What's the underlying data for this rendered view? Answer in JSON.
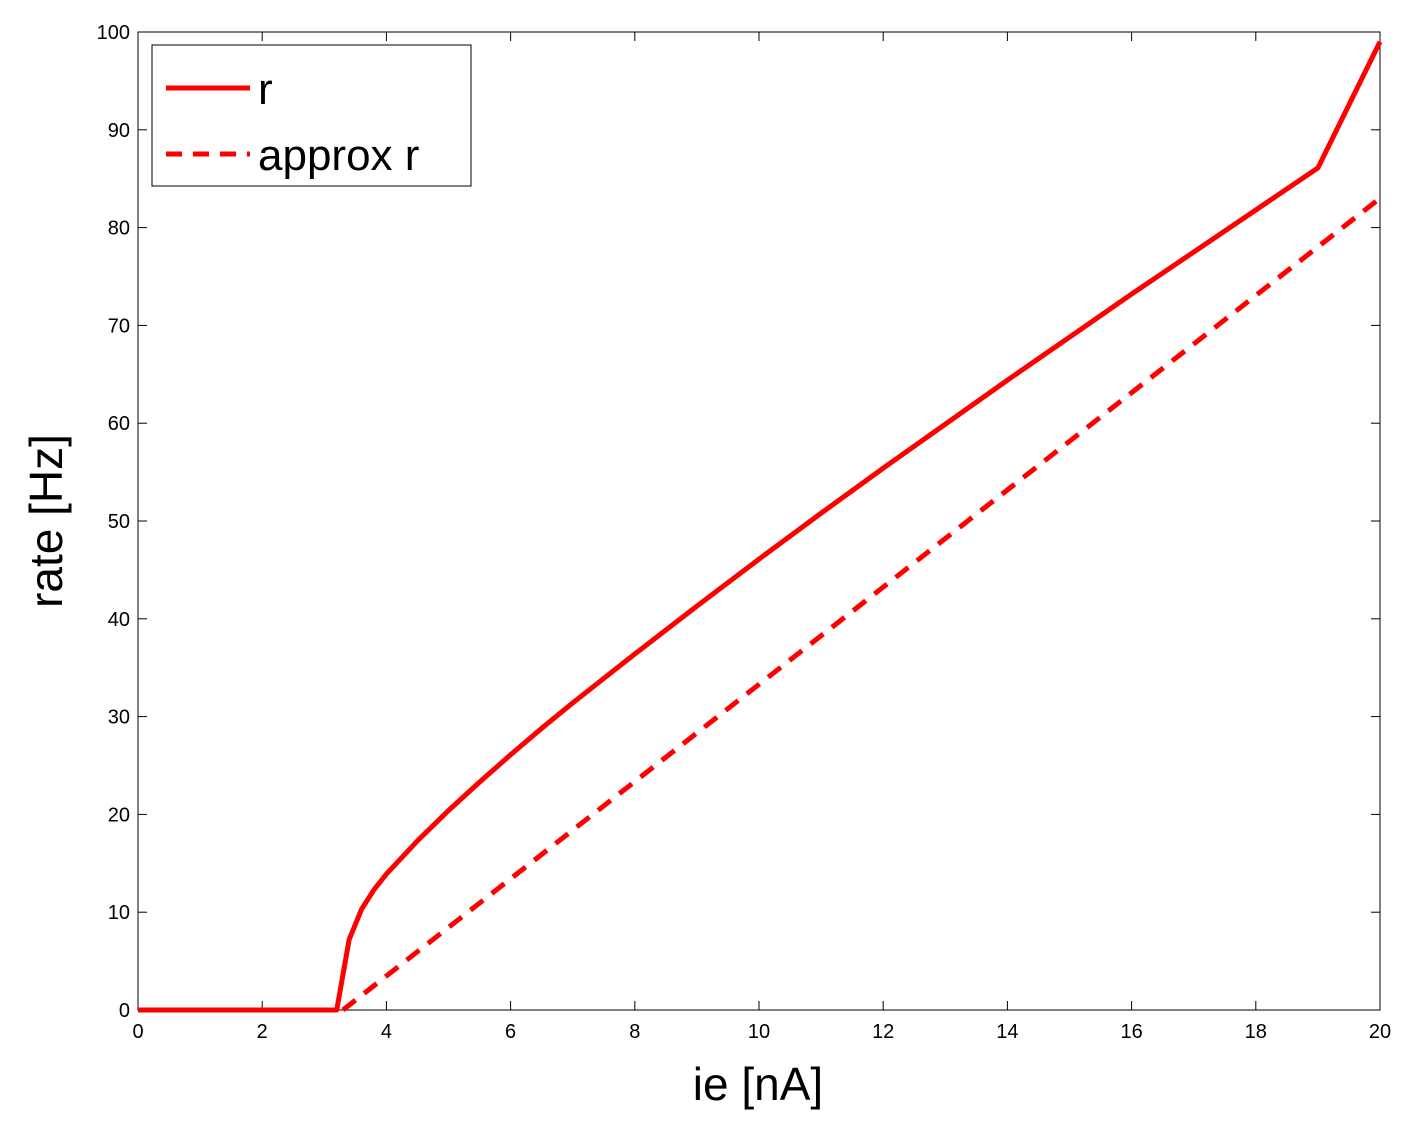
{
  "chart_data": {
    "type": "line",
    "xlabel": "ie [nA]",
    "ylabel": "rate [Hz]",
    "xlim": [
      0,
      20
    ],
    "ylim": [
      0,
      100
    ],
    "xticks": [
      0,
      2,
      4,
      6,
      8,
      10,
      12,
      14,
      16,
      18,
      20
    ],
    "yticks": [
      0,
      10,
      20,
      30,
      40,
      50,
      60,
      70,
      80,
      90,
      100
    ],
    "grid": false,
    "legend_position": "top-left",
    "series": [
      {
        "name": "r",
        "color": "#ff0000",
        "style": "solid",
        "x": [
          0,
          0.2,
          0.4,
          0.6,
          0.8,
          1.0,
          1.2,
          1.4,
          1.6,
          1.8,
          2.0,
          2.2,
          2.4,
          2.6,
          2.8,
          3.0,
          3.2,
          3.4,
          3.6,
          3.8,
          4.0,
          4.5,
          5,
          5.5,
          6,
          6.5,
          7,
          7.5,
          8,
          9,
          10,
          11,
          12,
          13,
          14,
          15,
          16,
          17,
          18,
          19,
          20
        ],
        "y": [
          0,
          0,
          0,
          0,
          0,
          0,
          0,
          0,
          0,
          0,
          0,
          0,
          0,
          0,
          0,
          0,
          0,
          7.2,
          10.3,
          12.3,
          13.9,
          17.3,
          20.4,
          23.3,
          26.1,
          28.8,
          31.4,
          33.9,
          36.4,
          41.3,
          46.1,
          50.8,
          55.4,
          59.9,
          64.4,
          68.8,
          73.2,
          77.5,
          81.8,
          86.1,
          99
        ]
      },
      {
        "name": "approx r",
        "color": "#ff0000",
        "style": "dashed",
        "x": [
          3.3,
          20
        ],
        "y": [
          0,
          83
        ]
      }
    ]
  }
}
